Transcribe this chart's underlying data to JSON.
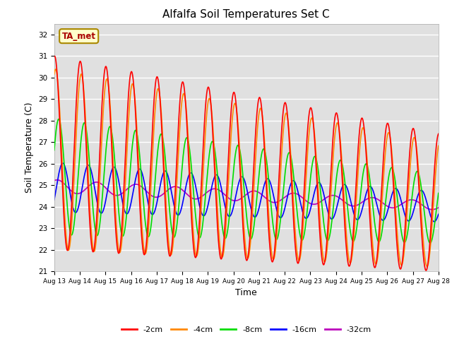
{
  "title": "Alfalfa Soil Temperatures Set C",
  "xlabel": "Time",
  "ylabel": "Soil Temperature (C)",
  "ylim": [
    21.0,
    32.5
  ],
  "yticks": [
    21.0,
    22.0,
    23.0,
    24.0,
    25.0,
    26.0,
    27.0,
    28.0,
    29.0,
    30.0,
    31.0,
    32.0
  ],
  "xtick_labels": [
    "Aug 13",
    "Aug 14",
    "Aug 15",
    "Aug 16",
    "Aug 17",
    "Aug 18",
    "Aug 19",
    "Aug 20",
    "Aug 21",
    "Aug 22",
    "Aug 23",
    "Aug 24",
    "Aug 25",
    "Aug 26",
    "Aug 27",
    "Aug 28"
  ],
  "series": {
    "-2cm": {
      "color": "#ff0000",
      "linewidth": 1.2
    },
    "-4cm": {
      "color": "#ff8800",
      "linewidth": 1.2
    },
    "-8cm": {
      "color": "#00dd00",
      "linewidth": 1.2
    },
    "-16cm": {
      "color": "#0000ff",
      "linewidth": 1.2
    },
    "-32cm": {
      "color": "#bb00bb",
      "linewidth": 1.2
    }
  },
  "annotation_text": "TA_met",
  "bg_color": "#e0e0e0",
  "fig_color": "#ffffff"
}
